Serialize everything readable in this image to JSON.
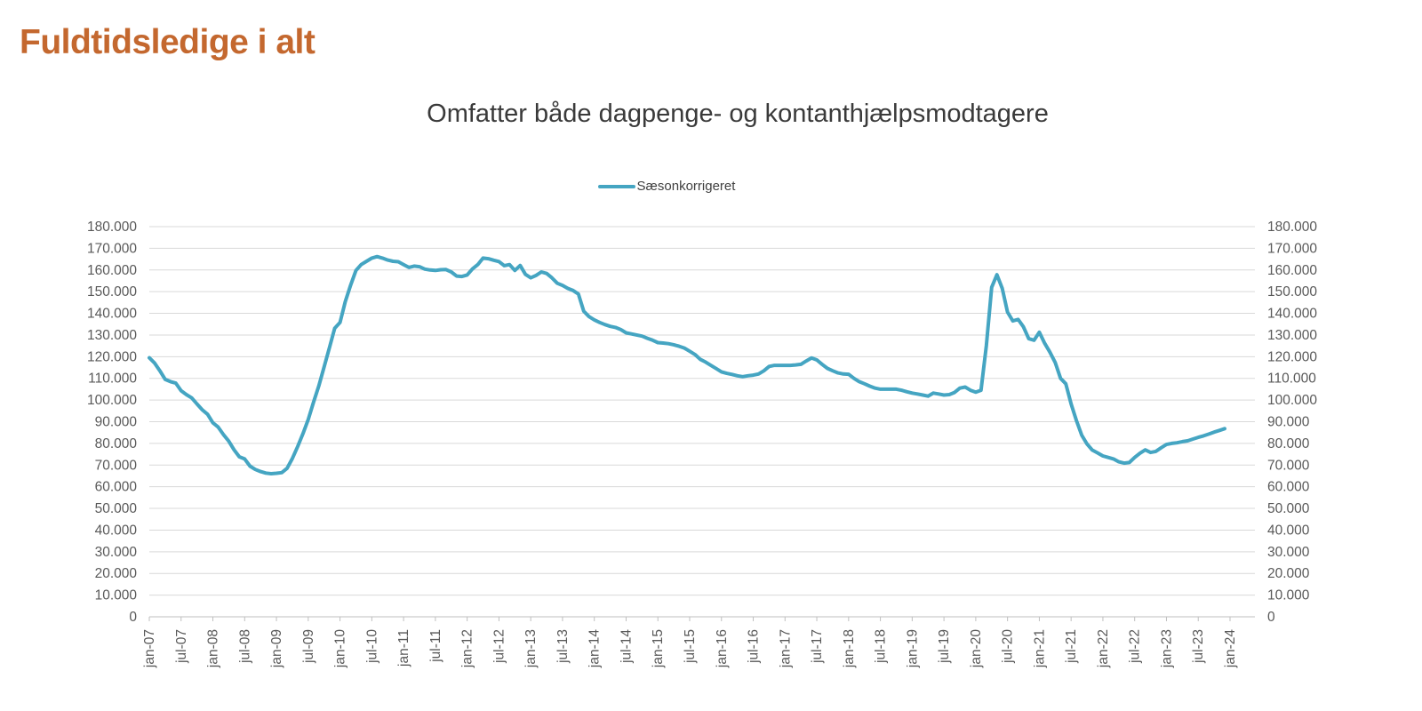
{
  "page": {
    "title": "Fuldtidsledige i alt"
  },
  "chart": {
    "subtitle": "Omfatter både dagpenge- og kontanthjælpsmodtagere",
    "legend": {
      "label": "Sæsonkorrigeret"
    },
    "colors": {
      "title": "#C4682F",
      "subtitle": "#3A3A3A",
      "series": "#45A5C2",
      "gridline": "#D9D9D9",
      "axis_line": "#BFBFBF",
      "tick_text": "#595959"
    }
  },
  "chart_data": {
    "type": "line",
    "title": "Omfatter både dagpenge- og kontanthjælpsmodtagere",
    "legend_entries": [
      "Sæsonkorrigeret"
    ],
    "legend_position": "top-center",
    "grid": "horizontal",
    "y_axis_sides": "both",
    "ylim": [
      0,
      180000
    ],
    "y_ticks": [
      0,
      10000,
      20000,
      30000,
      40000,
      50000,
      60000,
      70000,
      80000,
      90000,
      100000,
      110000,
      120000,
      130000,
      140000,
      150000,
      160000,
      170000,
      180000
    ],
    "y_tick_labels": [
      "0",
      "10.000",
      "20.000",
      "30.000",
      "40.000",
      "50.000",
      "60.000",
      "70.000",
      "80.000",
      "90.000",
      "100.000",
      "110.000",
      "120.000",
      "130.000",
      "140.000",
      "150.000",
      "160.000",
      "170.000",
      "180.000"
    ],
    "x_tick_labels": [
      "jan-07",
      "jul-07",
      "jan-08",
      "jul-08",
      "jan-09",
      "jul-09",
      "jan-10",
      "jul-10",
      "jan-11",
      "jul-11",
      "jan-12",
      "jul-12",
      "jan-13",
      "jul-13",
      "jan-14",
      "jul-14",
      "jan-15",
      "jul-15",
      "jan-16",
      "jul-16",
      "jan-17",
      "jul-17",
      "jan-18",
      "jul-18",
      "jan-19",
      "jul-19",
      "jan-20",
      "jul-20",
      "jan-21",
      "jul-21",
      "jan-22",
      "jul-22",
      "jan-23",
      "jul-23",
      "jan-24"
    ],
    "x_tick_interval_months": 6,
    "series": [
      {
        "name": "Sæsonkorrigeret",
        "color": "#45A5C2",
        "frequency": "monthly",
        "start_month": "jan-07",
        "end_month": "dec-23",
        "values": [
          119500,
          117000,
          113500,
          109500,
          108500,
          107800,
          104300,
          102500,
          101000,
          98200,
          95500,
          93400,
          89500,
          87500,
          84000,
          81000,
          77000,
          73800,
          72800,
          69500,
          68000,
          67000,
          66300,
          66000,
          66200,
          66500,
          68500,
          73000,
          78500,
          84500,
          91000,
          99000,
          106500,
          115300,
          124200,
          133100,
          135800,
          145400,
          153000,
          159800,
          162500,
          164000,
          165500,
          166200,
          165500,
          164600,
          164000,
          163800,
          162500,
          161200,
          161800,
          161500,
          160400,
          160000,
          159800,
          160100,
          160200,
          159100,
          157200,
          157000,
          157700,
          160500,
          162500,
          165500,
          165200,
          164500,
          163900,
          162000,
          162500,
          159800,
          162100,
          158000,
          156400,
          157500,
          159100,
          158400,
          156400,
          153900,
          152900,
          151500,
          150500,
          148900,
          141000,
          138500,
          137000,
          135800,
          134800,
          134000,
          133500,
          132500,
          131000,
          130500,
          130000,
          129500,
          128500,
          127600,
          126500,
          126300,
          126000,
          125500,
          124800,
          124000,
          122500,
          121000,
          118800,
          117500,
          116000,
          114500,
          113000,
          112300,
          111800,
          111200,
          110800,
          111200,
          111500,
          112000,
          113500,
          115500,
          116000,
          116000,
          116000,
          116000,
          116200,
          116500,
          118000,
          119400,
          118500,
          116500,
          114600,
          113500,
          112500,
          112000,
          111900,
          110000,
          108500,
          107500,
          106400,
          105500,
          105000,
          105000,
          105000,
          105000,
          104500,
          103800,
          103200,
          102800,
          102300,
          101800,
          103200,
          102800,
          102300,
          102500,
          103500,
          105500,
          106000,
          104500,
          103600,
          104500,
          125000,
          152000,
          157800,
          151500,
          140600,
          136500,
          137200,
          133800,
          128300,
          127600,
          131300,
          126200,
          122100,
          117300,
          110000,
          107500,
          98200,
          90600,
          83800,
          79700,
          76900,
          75600,
          74200,
          73500,
          72800,
          71500,
          70900,
          71200,
          73500,
          75500,
          77000,
          75800,
          76300,
          78000,
          79500,
          80000,
          80300,
          80800,
          81200,
          82000,
          82800,
          83500,
          84300,
          85200,
          86000,
          86800
        ]
      }
    ]
  }
}
